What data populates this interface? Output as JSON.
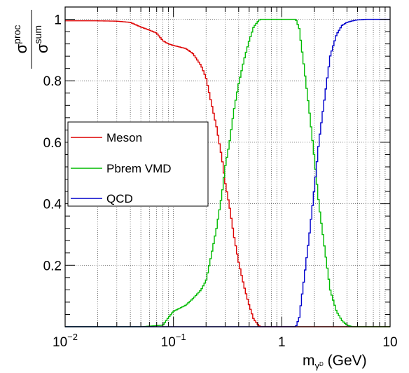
{
  "chart_data": {
    "type": "line",
    "xscale": "log",
    "xlim": [
      0.01,
      10
    ],
    "ylim": [
      0,
      1.04
    ],
    "grid": true,
    "legend_position": "left",
    "xlabel": {
      "main": "m",
      "sub": "γ",
      "subsup": "D",
      "unit": " (GeV)"
    },
    "ylabel": {
      "num": "σ",
      "num_sub": "proc",
      "den": "σ",
      "den_sub": "sum"
    },
    "x_ticks": [
      {
        "value": 0.01,
        "base": "10",
        "exp": "−2"
      },
      {
        "value": 0.1,
        "base": "10",
        "exp": "−1"
      },
      {
        "value": 1,
        "base": "1",
        "exp": ""
      },
      {
        "value": 10,
        "base": "10",
        "exp": ""
      }
    ],
    "y_ticks": [
      {
        "value": 0.2,
        "label": "0.2"
      },
      {
        "value": 0.4,
        "label": "0.4"
      },
      {
        "value": 0.6,
        "label": "0.6"
      },
      {
        "value": 0.8,
        "label": "0.8"
      },
      {
        "value": 1.0,
        "label": "1"
      }
    ],
    "series": [
      {
        "name": "Meson",
        "color": "#dd0000",
        "x": [
          0.01,
          0.02,
          0.03,
          0.04,
          0.05,
          0.06,
          0.07,
          0.08,
          0.09,
          0.1,
          0.13,
          0.15,
          0.18,
          0.2,
          0.22,
          0.25,
          0.28,
          0.3,
          0.33,
          0.36,
          0.4,
          0.45,
          0.5,
          0.55,
          0.6,
          0.62,
          0.63,
          0.7,
          1,
          2,
          10
        ],
        "y": [
          0.995,
          0.995,
          0.994,
          0.99,
          0.975,
          0.965,
          0.955,
          0.93,
          0.92,
          0.915,
          0.905,
          0.89,
          0.85,
          0.81,
          0.74,
          0.65,
          0.55,
          0.47,
          0.39,
          0.3,
          0.21,
          0.13,
          0.07,
          0.025,
          0.008,
          0.003,
          0,
          0,
          0,
          0,
          0
        ]
      },
      {
        "name": "Pbrem VMD",
        "color": "#00bb00",
        "x": [
          0.01,
          0.05,
          0.08,
          0.09,
          0.1,
          0.13,
          0.15,
          0.18,
          0.2,
          0.22,
          0.25,
          0.28,
          0.3,
          0.33,
          0.36,
          0.4,
          0.45,
          0.5,
          0.55,
          0.6,
          0.63,
          1,
          1.35,
          1.45,
          1.6,
          1.8,
          2.0,
          2.2,
          2.5,
          2.8,
          3.2,
          3.6,
          4.0,
          4.5,
          10
        ],
        "y": [
          0,
          0,
          0.005,
          0.03,
          0.05,
          0.07,
          0.09,
          0.12,
          0.15,
          0.22,
          0.32,
          0.43,
          0.52,
          0.6,
          0.7,
          0.79,
          0.87,
          0.93,
          0.975,
          0.992,
          1.0,
          1.0,
          1.0,
          0.97,
          0.85,
          0.7,
          0.55,
          0.4,
          0.25,
          0.12,
          0.05,
          0.02,
          0.005,
          0,
          0
        ]
      },
      {
        "name": "QCD",
        "color": "#0000cc",
        "x": [
          0.01,
          1,
          1.35,
          1.45,
          1.6,
          1.8,
          2.0,
          2.2,
          2.5,
          2.8,
          3.2,
          3.6,
          4.0,
          4.5,
          5,
          6,
          7,
          8,
          10
        ],
        "y": [
          0,
          0,
          0,
          0.03,
          0.15,
          0.3,
          0.45,
          0.6,
          0.75,
          0.88,
          0.95,
          0.98,
          0.99,
          0.995,
          0.998,
          1,
          1,
          1,
          1
        ]
      }
    ]
  }
}
